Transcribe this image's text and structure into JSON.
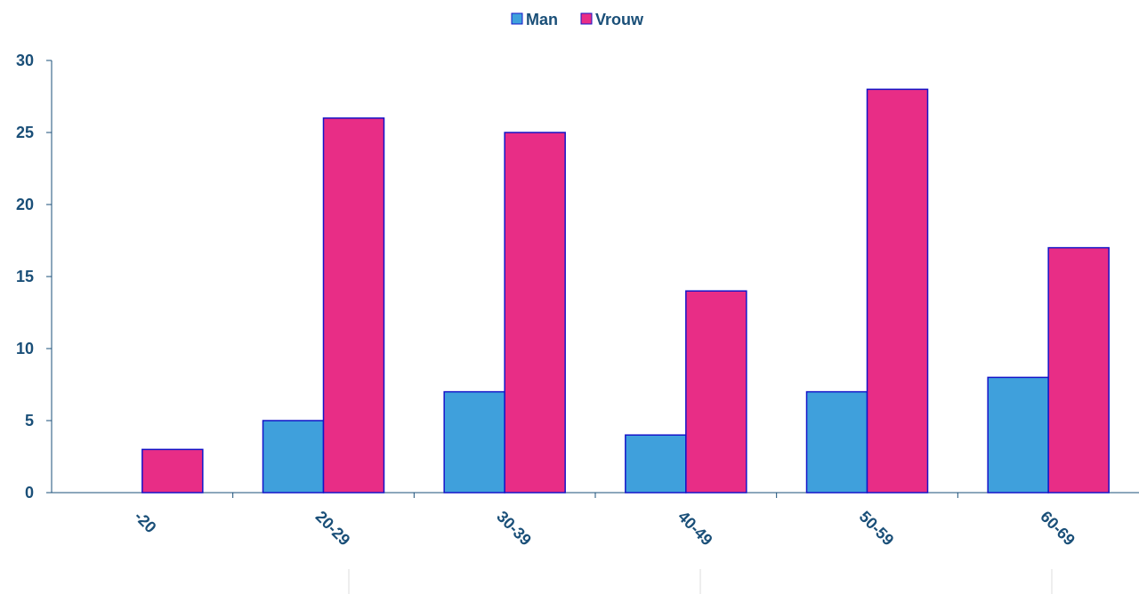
{
  "chart_data": {
    "type": "bar",
    "categories": [
      "-20",
      "20-29",
      "30-39",
      "40-49",
      "50-59",
      "60-69"
    ],
    "series": [
      {
        "name": "Man",
        "color": "#3fa0dc",
        "values": [
          0,
          5,
          7,
          4,
          7,
          8
        ]
      },
      {
        "name": "Vrouw",
        "color": "#e82d86",
        "values": [
          3,
          26,
          25,
          14,
          28,
          17
        ]
      }
    ],
    "yticks": [
      "0",
      "5",
      "10",
      "15",
      "20",
      "25",
      "30"
    ],
    "ylim": [
      0,
      30
    ],
    "legend_position": "top-center",
    "grid": false,
    "axis_color": "#1a4f78",
    "bar_border_color": "#1414c8"
  }
}
